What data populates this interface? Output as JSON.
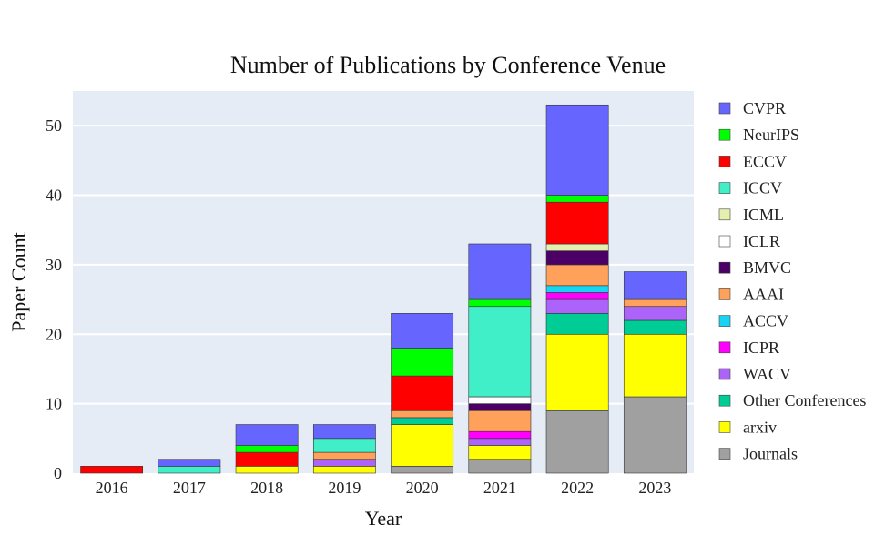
{
  "chart_data": {
    "type": "bar",
    "stacked": true,
    "title": "Number of Publications by Conference Venue",
    "xlabel": "Year",
    "ylabel": "Paper Count",
    "categories": [
      "2016",
      "2017",
      "2018",
      "2019",
      "2020",
      "2021",
      "2022",
      "2023"
    ],
    "ylim": [
      0,
      55
    ],
    "yticks": [
      0,
      10,
      20,
      30,
      40,
      50
    ],
    "grid": true,
    "legend_position": "right",
    "plot_background": "#e5ecf6",
    "series": [
      {
        "name": "Journals",
        "color": "#a0a0a0",
        "values": [
          0,
          0,
          0,
          0,
          1,
          2,
          9,
          11
        ]
      },
      {
        "name": "arxiv",
        "color": "#ffff00",
        "values": [
          0,
          0,
          1,
          1,
          6,
          2,
          11,
          9
        ]
      },
      {
        "name": "Other Conferences",
        "color": "#00cc96",
        "values": [
          0,
          0,
          0,
          0,
          1,
          0,
          3,
          2
        ]
      },
      {
        "name": "WACV",
        "color": "#ab63fa",
        "values": [
          0,
          0,
          0,
          1,
          0,
          1,
          2,
          2
        ]
      },
      {
        "name": "ICPR",
        "color": "#ff00ff",
        "values": [
          0,
          0,
          0,
          0,
          0,
          1,
          1,
          0
        ]
      },
      {
        "name": "ACCV",
        "color": "#19d3f3",
        "values": [
          0,
          0,
          0,
          0,
          0,
          0,
          1,
          0
        ]
      },
      {
        "name": "AAAI",
        "color": "#ffa15a",
        "values": [
          0,
          0,
          0,
          1,
          1,
          3,
          3,
          1
        ]
      },
      {
        "name": "BMVC",
        "color": "#4b0066",
        "values": [
          0,
          0,
          0,
          0,
          0,
          1,
          2,
          0
        ]
      },
      {
        "name": "ICLR",
        "color": "#ffffff",
        "values": [
          0,
          0,
          0,
          0,
          0,
          1,
          0,
          0
        ]
      },
      {
        "name": "ICML",
        "color": "#e5f0b0",
        "values": [
          0,
          0,
          0,
          0,
          0,
          0,
          1,
          0
        ]
      },
      {
        "name": "ICCV",
        "color": "#40efc8",
        "values": [
          0,
          1,
          0,
          2,
          0,
          13,
          0,
          0
        ]
      },
      {
        "name": "ECCV",
        "color": "#ff0000",
        "values": [
          1,
          0,
          2,
          0,
          5,
          0,
          6,
          0
        ]
      },
      {
        "name": "NeurIPS",
        "color": "#00ff00",
        "values": [
          0,
          0,
          1,
          0,
          4,
          1,
          1,
          0
        ]
      },
      {
        "name": "CVPR",
        "color": "#6666ff",
        "values": [
          0,
          1,
          3,
          2,
          5,
          8,
          13,
          4
        ]
      }
    ],
    "legend_order": [
      "CVPR",
      "NeurIPS",
      "ECCV",
      "ICCV",
      "ICML",
      "ICLR",
      "BMVC",
      "AAAI",
      "ACCV",
      "ICPR",
      "WACV",
      "Other Conferences",
      "arxiv",
      "Journals"
    ]
  }
}
